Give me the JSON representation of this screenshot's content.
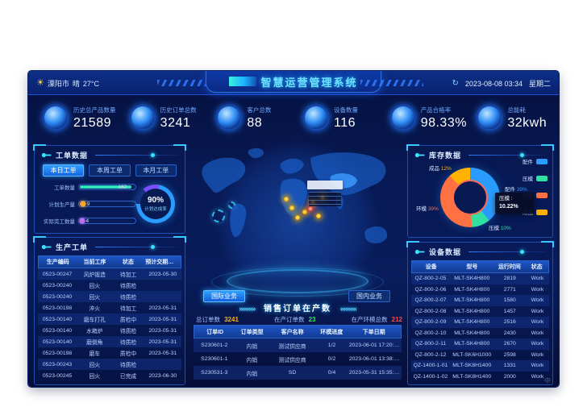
{
  "header": {
    "weather": {
      "icon": "☀",
      "city": "溧阳市",
      "condition": "晴",
      "temp": "27°C"
    },
    "title": "智慧运营管理系统",
    "refresh_icon": "↻",
    "datetime": "2023-08-08 03:34",
    "weekday": "星期二"
  },
  "kpis": [
    {
      "label": "历史总产品数量",
      "value": "21589"
    },
    {
      "label": "历史订单总数",
      "value": "3241"
    },
    {
      "label": "客户总数",
      "value": "88"
    },
    {
      "label": "设备数量",
      "value": "116"
    },
    {
      "label": "产品合格率",
      "value": "98.33%"
    },
    {
      "label": "总能耗",
      "value": "32kwh"
    }
  ],
  "work_order_panel": {
    "title": "工单数据",
    "tabs": [
      {
        "label": "本日工单",
        "active": true
      },
      {
        "label": "本周工单",
        "active": false
      },
      {
        "label": "本月工单",
        "active": false
      }
    ],
    "bars": [
      {
        "label": "工单数量",
        "value": "162",
        "color": "#2fe3c2",
        "pct": 92
      },
      {
        "label": "计划生产量",
        "value": "9",
        "color": "#ffa726",
        "pct": 7
      },
      {
        "label": "实际完工数量",
        "value": "4",
        "color": "#c06ef0",
        "pct": 5
      }
    ],
    "gauge": {
      "value": "90%",
      "label": "计划达成率"
    }
  },
  "production_panel": {
    "title": "生产工单",
    "headers": [
      "生产编码",
      "当前工序",
      "状态",
      "预计交期时间"
    ],
    "rows": [
      [
        "0523-00247",
        "风炉锻造",
        "待加工",
        "2023-05-30"
      ],
      [
        "0523-00240",
        "回火",
        "待质检",
        ""
      ],
      [
        "0523-00240",
        "回火",
        "待质检",
        ""
      ],
      [
        "0523-00198",
        "淬火",
        "待加工",
        "2023-05-31"
      ],
      [
        "0523-00140",
        "磨车打孔",
        "质检中",
        "2023-05-31"
      ],
      [
        "0523-00140",
        "水箱炉",
        "待质检",
        "2023-05-31"
      ],
      [
        "0523-00140",
        "磨倒角",
        "待质检",
        "2023-05-31"
      ],
      [
        "0523-00198",
        "磨车",
        "质检中",
        "2023-05-31"
      ],
      [
        "0523-00243",
        "回火",
        "待质检",
        ""
      ],
      [
        "0523-00245",
        "回火",
        "已完成",
        "2023-06-30"
      ]
    ]
  },
  "map_section": {
    "buttons": [
      {
        "label": "国际业务",
        "active": true
      },
      {
        "label": "国内业务",
        "active": false
      }
    ],
    "title": "销售订单在产数",
    "arrow_left": "»»»»»",
    "arrow_right": "«««««",
    "stats": [
      {
        "label": "总订单数",
        "value": "3241",
        "color": "#ffb300"
      },
      {
        "label": "在产订单数",
        "value": "23",
        "color": "#35e06a"
      },
      {
        "label": "在产环模总数",
        "value": "212",
        "color": "#ff4d4d"
      }
    ],
    "table": {
      "headers": [
        "订单ID",
        "订单类型",
        "客户名称",
        "环模进度",
        "下单日期"
      ],
      "rows": [
        [
          "S230601-2",
          "内销",
          "测试供应商",
          "1/2",
          "2023-06-01 17:20:53"
        ],
        [
          "S230601-1",
          "内销",
          "测试供应商",
          "0/2",
          "2023-06-01 13:38:30"
        ],
        [
          "S230531-3",
          "内销",
          "SD",
          "0/4",
          "2023-05-31 15:35:12"
        ]
      ]
    }
  },
  "inventory_panel": {
    "title": "库存数据",
    "slices": [
      {
        "name": "配件",
        "pct": 39,
        "color": "#2b9cff"
      },
      {
        "name": "压模",
        "pct": 10,
        "color": "#2fe0a0"
      },
      {
        "name": "环模",
        "pct": 39,
        "color": "#ff7043"
      },
      {
        "name": "成品",
        "pct": 12,
        "color": "#ffb300"
      }
    ],
    "callouts": [
      {
        "name": "成品",
        "pct": "12%"
      },
      {
        "name": "配件",
        "pct": "39%"
      },
      {
        "name": "环模",
        "pct": "39%"
      },
      {
        "name": "压模",
        "pct": "10%"
      }
    ],
    "tooltip": {
      "name": "压模 :",
      "value": "10.22%"
    }
  },
  "equipment_panel": {
    "title": "设备数据",
    "headers": [
      "设备",
      "型号",
      "运行时间",
      "状态"
    ],
    "rows": [
      [
        "QZ-800-2-05",
        "MLT-SK4H800",
        "2819",
        "Work"
      ],
      [
        "QZ-800-2-06",
        "MLT-SK4H800",
        "2771",
        "Work"
      ],
      [
        "QZ-800-2-07",
        "MLT-SK4H800",
        "1580",
        "Work"
      ],
      [
        "QZ-800-2-08",
        "MLT-SK4H800",
        "1457",
        "Work"
      ],
      [
        "QZ-800-2-09",
        "MLT-SK4H800",
        "2516",
        "Work"
      ],
      [
        "QZ-800-2-10",
        "MLT-SK4H800",
        "2430",
        "Work"
      ],
      [
        "QZ-800-2-11",
        "MLT-SK4H800",
        "2670",
        "Work"
      ],
      [
        "QZ-800-2-12",
        "MLT-SK6H1000",
        "2598",
        "Work"
      ],
      [
        "QZ-1400-1-01",
        "MLT-SK8H1400",
        "1331",
        "Work"
      ],
      [
        "QZ-1400-1-02",
        "MLT-SK8H1400",
        "2000",
        "Work"
      ]
    ]
  },
  "watermark": "中"
}
